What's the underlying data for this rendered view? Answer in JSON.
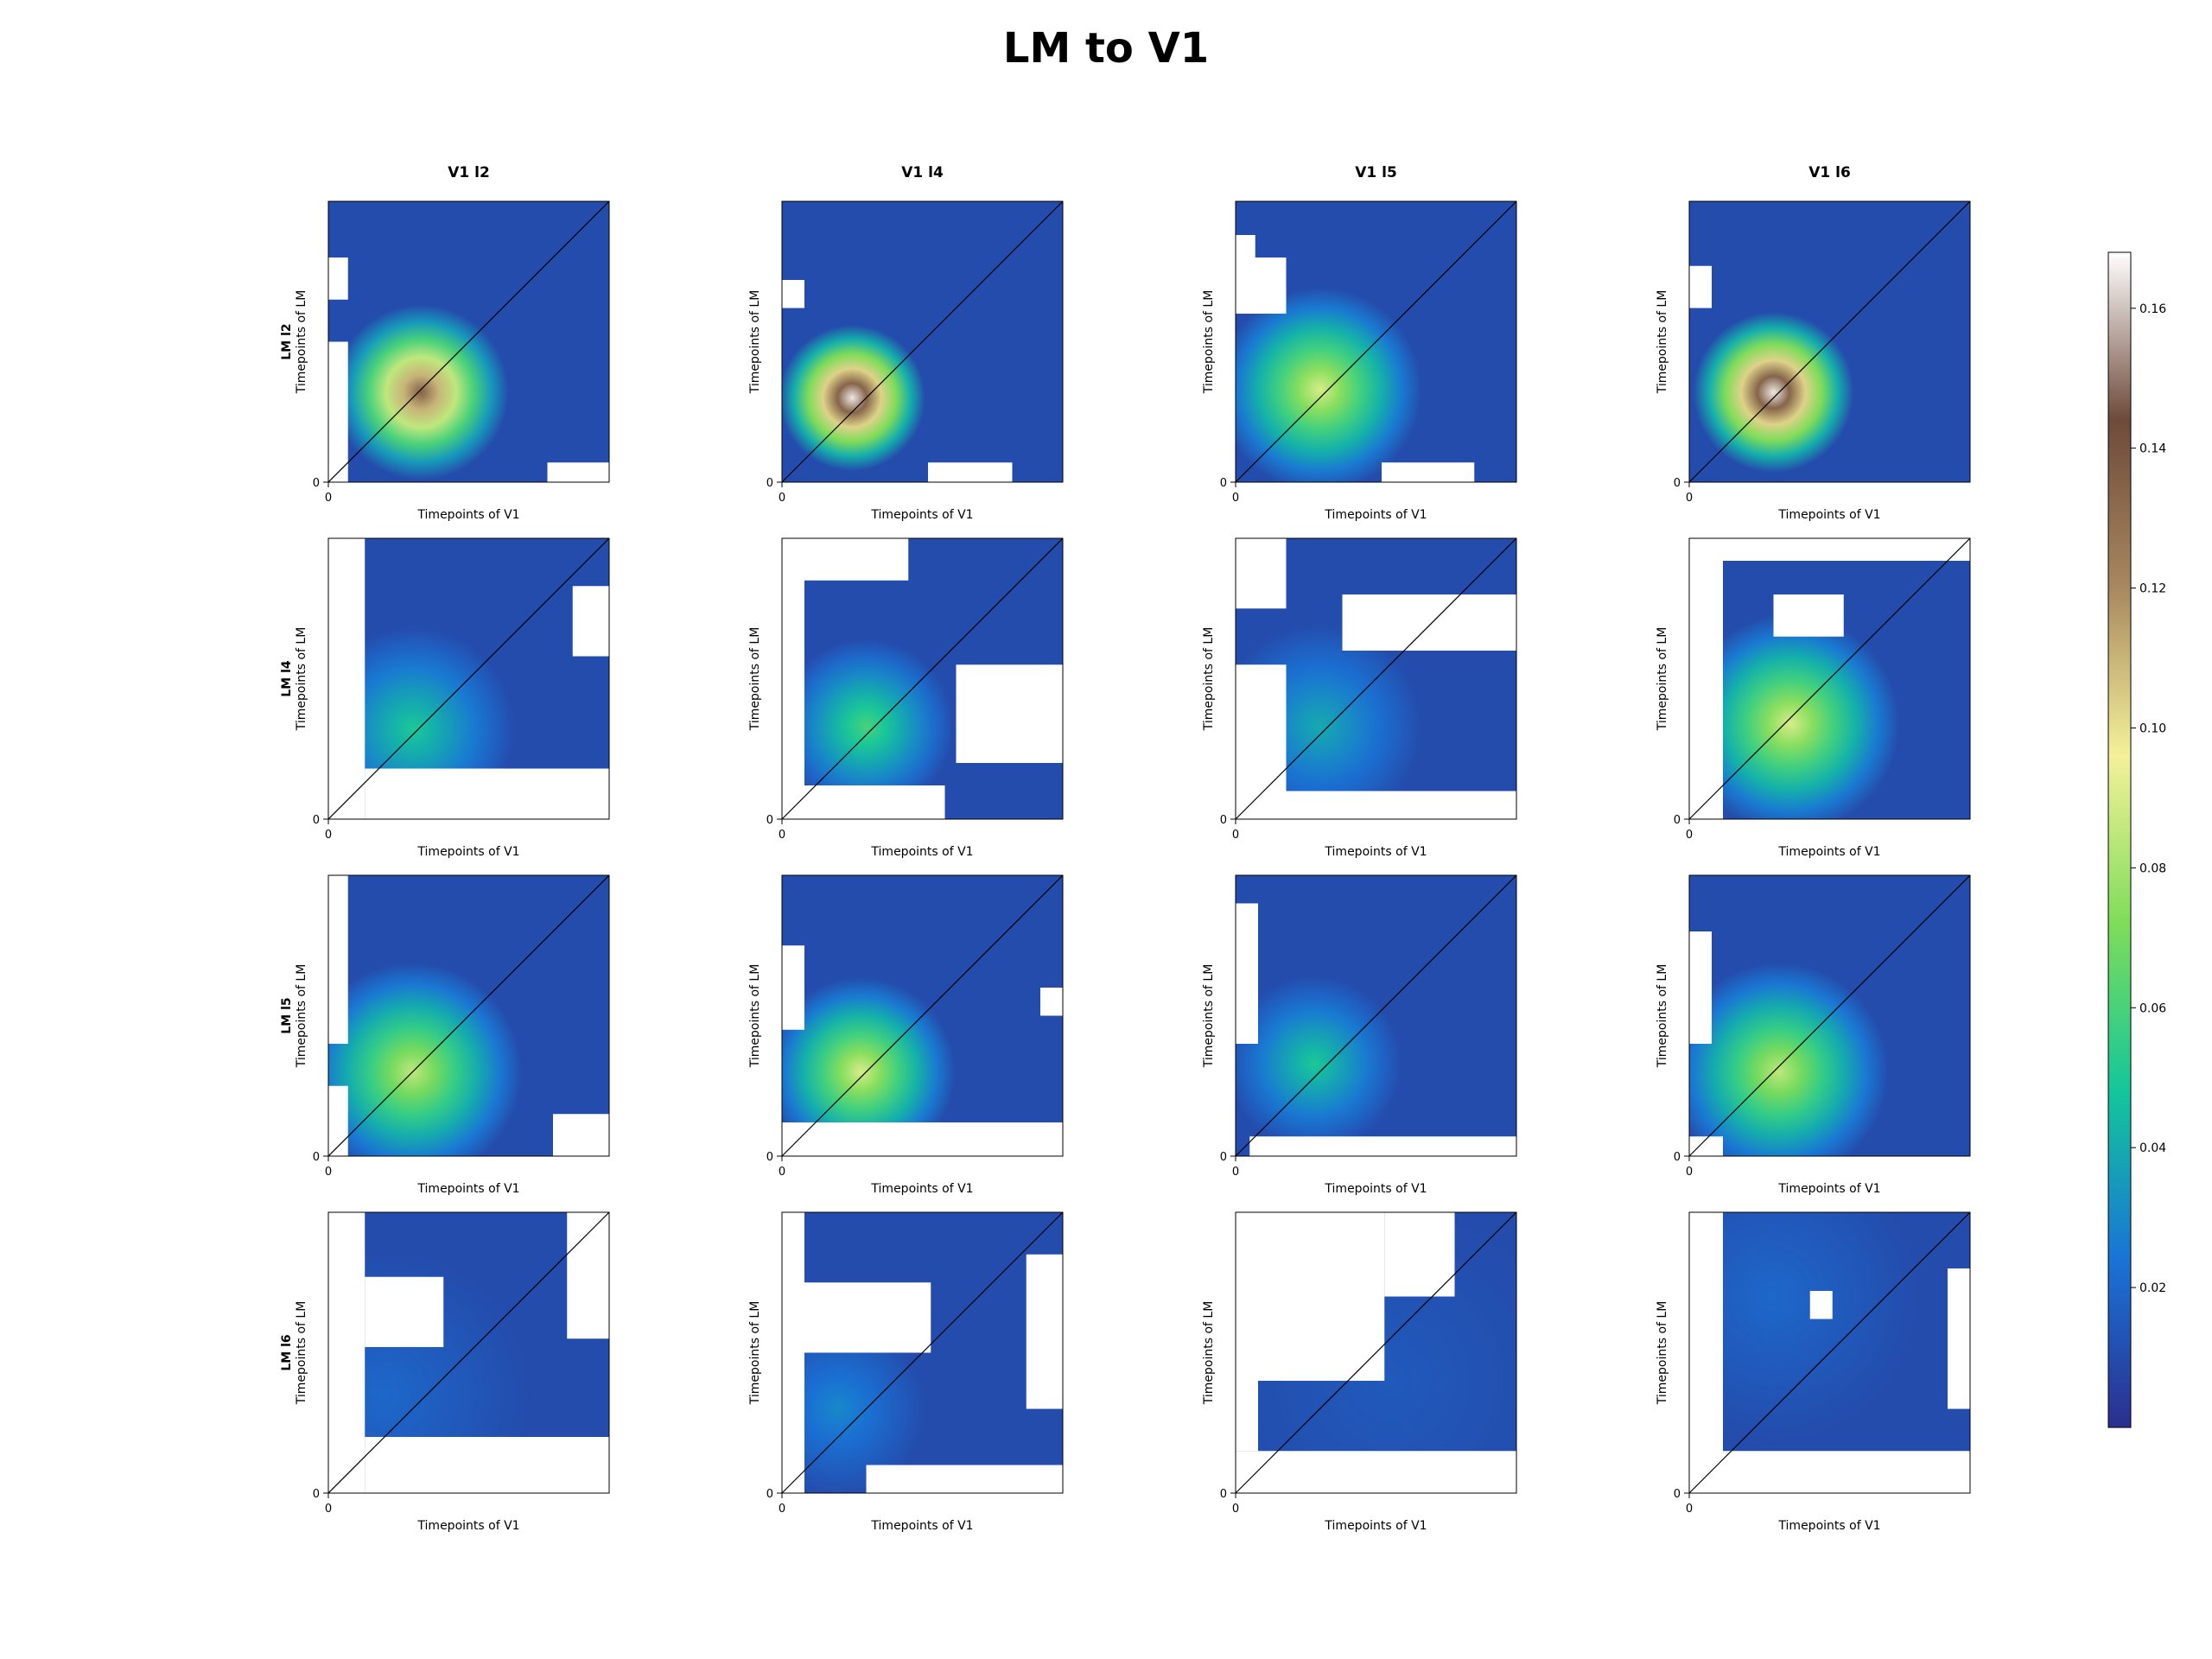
{
  "title": "LM to V1",
  "chart_data": {
    "type": "heatmap",
    "title": "LM to V1",
    "column_titles": [
      "V1 l2",
      "V1 l4",
      "V1 l5",
      "V1 l6"
    ],
    "row_titles": [
      "LM l2",
      "LM l4",
      "LM l5",
      "LM l6"
    ],
    "xlabel": "Timepoints of V1",
    "ylabel": "Timepoints of LM",
    "x_tick_label": "0",
    "y_tick_label": "0",
    "diagonal_line": true,
    "masked_color": "#ffffff",
    "colorbar": {
      "colormap": "gist_earth_r-like",
      "range": [
        0.0,
        0.168
      ],
      "ticks": [
        0.02,
        0.04,
        0.06,
        0.08,
        0.1,
        0.12,
        0.14,
        0.16
      ],
      "tick_labels": [
        "0.02",
        "0.04",
        "0.06",
        "0.08",
        "0.10",
        "0.12",
        "0.14",
        "0.16"
      ],
      "stops": [
        "#2b2f8e",
        "#1a73d6",
        "#13c69b",
        "#7fdc5a",
        "#f4f19a",
        "#a88860",
        "#6e4a3a",
        "#ffffff"
      ]
    },
    "panels": [
      [
        {
          "peak": 0.135,
          "peak_x": 0.33,
          "peak_y": 0.32,
          "spread": 0.12,
          "masked": [
            [
              0.0,
              0.0,
              0.07,
              0.5
            ],
            [
              0.0,
              0.65,
              0.07,
              0.15
            ],
            [
              0.78,
              0.0,
              0.22,
              0.07
            ]
          ]
        },
        {
          "peak": 0.165,
          "peak_x": 0.25,
          "peak_y": 0.3,
          "spread": 0.1,
          "masked": [
            [
              0.0,
              0.62,
              0.08,
              0.1
            ],
            [
              0.52,
              0.0,
              0.3,
              0.07
            ]
          ]
        },
        {
          "peak": 0.09,
          "peak_x": 0.3,
          "peak_y": 0.33,
          "spread": 0.14,
          "masked": [
            [
              0.0,
              0.6,
              0.18,
              0.2
            ],
            [
              0.0,
              0.78,
              0.07,
              0.1
            ],
            [
              0.52,
              0.0,
              0.33,
              0.07
            ]
          ]
        },
        {
          "peak": 0.165,
          "peak_x": 0.3,
          "peak_y": 0.32,
          "spread": 0.11,
          "masked": [
            [
              0.0,
              0.62,
              0.08,
              0.15
            ]
          ]
        }
      ],
      [
        {
          "peak": 0.05,
          "peak_x": 0.3,
          "peak_y": 0.32,
          "spread": 0.14,
          "masked": [
            [
              0.0,
              0.0,
              0.13,
              1.0
            ],
            [
              0.13,
              0.0,
              0.87,
              0.18
            ],
            [
              0.87,
              0.58,
              0.13,
              0.25
            ]
          ]
        },
        {
          "peak": 0.06,
          "peak_x": 0.3,
          "peak_y": 0.33,
          "spread": 0.12,
          "masked": [
            [
              0.0,
              0.0,
              0.08,
              1.0
            ],
            [
              0.08,
              0.85,
              0.37,
              0.15
            ],
            [
              0.62,
              0.2,
              0.38,
              0.35
            ],
            [
              0.08,
              0.0,
              0.5,
              0.12
            ]
          ]
        },
        {
          "peak": 0.04,
          "peak_x": 0.3,
          "peak_y": 0.33,
          "spread": 0.14,
          "masked": [
            [
              0.0,
              0.0,
              0.18,
              0.55
            ],
            [
              0.0,
              0.75,
              0.18,
              0.25
            ],
            [
              0.38,
              0.6,
              0.62,
              0.2
            ],
            [
              0.18,
              0.0,
              0.82,
              0.1
            ]
          ]
        },
        {
          "peak": 0.09,
          "peak_x": 0.36,
          "peak_y": 0.34,
          "spread": 0.15,
          "masked": [
            [
              0.0,
              0.0,
              0.12,
              1.0
            ],
            [
              0.12,
              0.92,
              0.88,
              0.08
            ],
            [
              0.3,
              0.65,
              0.25,
              0.15
            ]
          ]
        }
      ],
      [
        {
          "peak": 0.085,
          "peak_x": 0.3,
          "peak_y": 0.3,
          "spread": 0.15,
          "masked": [
            [
              0.0,
              0.0,
              0.07,
              0.25
            ],
            [
              0.0,
              0.4,
              0.07,
              0.6
            ],
            [
              0.8,
              0.0,
              0.2,
              0.15
            ]
          ]
        },
        {
          "peak": 0.09,
          "peak_x": 0.28,
          "peak_y": 0.3,
          "spread": 0.13,
          "masked": [
            [
              0.0,
              0.0,
              1.0,
              0.12
            ],
            [
              0.0,
              0.45,
              0.08,
              0.3
            ],
            [
              0.92,
              0.5,
              0.08,
              0.1
            ]
          ]
        },
        {
          "peak": 0.05,
          "peak_x": 0.28,
          "peak_y": 0.33,
          "spread": 0.12,
          "masked": [
            [
              0.0,
              0.4,
              0.08,
              0.5
            ],
            [
              0.05,
              0.0,
              0.95,
              0.07
            ]
          ]
        },
        {
          "peak": 0.085,
          "peak_x": 0.32,
          "peak_y": 0.3,
          "spread": 0.15,
          "masked": [
            [
              0.0,
              0.0,
              0.12,
              0.07
            ],
            [
              0.0,
              0.4,
              0.08,
              0.4
            ]
          ]
        }
      ],
      [
        {
          "peak": 0.02,
          "peak_x": 0.2,
          "peak_y": 0.35,
          "spread": 0.2,
          "masked": [
            [
              0.0,
              0.0,
              0.13,
              1.0
            ],
            [
              0.13,
              0.0,
              0.87,
              0.2
            ],
            [
              0.13,
              0.52,
              0.28,
              0.25
            ],
            [
              0.85,
              0.55,
              0.15,
              0.45
            ]
          ]
        },
        {
          "peak": 0.03,
          "peak_x": 0.2,
          "peak_y": 0.3,
          "spread": 0.12,
          "masked": [
            [
              0.0,
              0.0,
              0.08,
              1.0
            ],
            [
              0.08,
              0.5,
              0.45,
              0.25
            ],
            [
              0.87,
              0.3,
              0.13,
              0.55
            ],
            [
              0.3,
              0.0,
              0.7,
              0.1
            ]
          ]
        },
        {
          "peak": 0.015,
          "peak_x": 0.55,
          "peak_y": 0.4,
          "spread": 0.25,
          "masked": [
            [
              0.0,
              0.0,
              1.0,
              0.15
            ],
            [
              0.0,
              0.15,
              0.08,
              0.85
            ],
            [
              0.08,
              0.4,
              0.45,
              0.6
            ],
            [
              0.53,
              0.7,
              0.25,
              0.3
            ]
          ]
        },
        {
          "peak": 0.02,
          "peak_x": 0.3,
          "peak_y": 0.7,
          "spread": 0.2,
          "masked": [
            [
              0.0,
              0.0,
              0.12,
              1.0
            ],
            [
              0.12,
              0.0,
              0.88,
              0.15
            ],
            [
              0.43,
              0.62,
              0.08,
              0.1
            ],
            [
              0.92,
              0.3,
              0.08,
              0.5
            ]
          ]
        }
      ]
    ]
  }
}
